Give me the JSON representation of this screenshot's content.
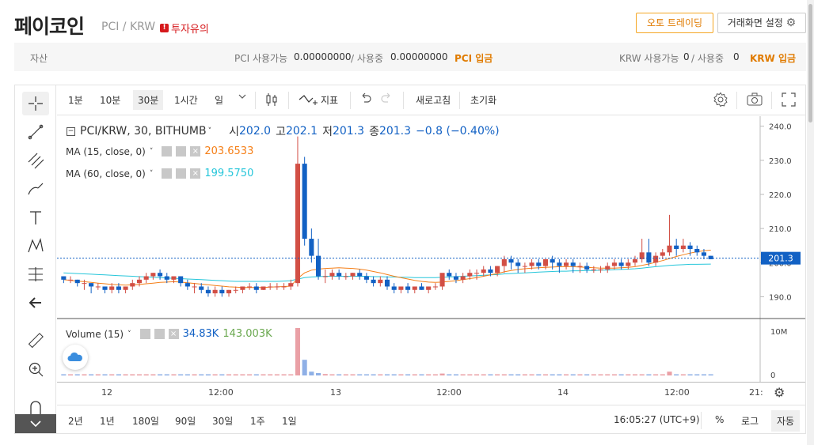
{
  "header": {
    "coin_name": "페이코인",
    "pair": "PCI / KRW",
    "warning": "투자유의",
    "auto_trading": "오토 트레이딩",
    "screen_settings": "거래화면 설정"
  },
  "assets": {
    "label": "자산",
    "pci_label": "PCI 사용가능",
    "pci_available": "0.00000000",
    "in_use_label": "/ 사용중",
    "pci_in_use": "0.00000000",
    "pci_deposit": "PCI 입금",
    "krw_label": "KRW 사용가능",
    "krw_available": "0",
    "krw_in_use_label": "/ 사용중",
    "krw_in_use": "0",
    "krw_deposit": "KRW 입금"
  },
  "toolbar": {
    "intervals": [
      "1분",
      "10분",
      "30분",
      "1시간",
      "일"
    ],
    "selected_interval": "30분",
    "indicators": "지표",
    "refresh": "새로고침",
    "reset": "초기화"
  },
  "legend": {
    "symbol": "PCI/KRW, 30, BITHUMB",
    "open_label": "시",
    "open": "202.0",
    "high_label": "고",
    "high": "202.1",
    "low_label": "저",
    "low": "201.3",
    "close_label": "종",
    "close": "201.3",
    "change": "−0.8 (−0.40%)",
    "ma15_label": "MA (15, close, 0)",
    "ma15_value": "203.6533",
    "ma60_label": "MA (60, close, 0)",
    "ma60_value": "199.5750",
    "volume_label": "Volume (15)",
    "volume_value": "34.83K",
    "volume_ma": "143.003K"
  },
  "price_axis": [
    "240.0",
    "230.0",
    "220.0",
    "210.0",
    "200.0",
    "190.0"
  ],
  "current_price": "201.3",
  "volume_axis": [
    "10M",
    "0"
  ],
  "time_axis": [
    "12",
    "12:00",
    "13",
    "12:00",
    "14",
    "12:00",
    "21:"
  ],
  "bottom": {
    "ranges": [
      "2년",
      "1년",
      "180일",
      "90일",
      "30일",
      "1주",
      "1일"
    ],
    "clock": "16:05:27 (UTC+9)",
    "percent": "%",
    "log": "로그",
    "auto": "자동"
  },
  "colors": {
    "up": "#d24f45",
    "down": "#1261c4",
    "ma15": "#f57f17",
    "ma60": "#26c6da",
    "accent": "#e07b00"
  },
  "chart_data": {
    "type": "candlestick",
    "title": "PCI/KRW, 30, BITHUMB",
    "ylim": [
      185,
      242
    ],
    "candles": [
      [
        196,
        196,
        195,
        194
      ],
      [
        195,
        196,
        195,
        194
      ],
      [
        195,
        195,
        194,
        193
      ],
      [
        194,
        195,
        194,
        192
      ],
      [
        194,
        194,
        193,
        191
      ],
      [
        193,
        194,
        193,
        192
      ],
      [
        193,
        193,
        192,
        191
      ],
      [
        192,
        194,
        193,
        191
      ],
      [
        193,
        194,
        192,
        191
      ],
      [
        192,
        193,
        193,
        191
      ],
      [
        193,
        195,
        194,
        192
      ],
      [
        194,
        196,
        195,
        193
      ],
      [
        195,
        197,
        196,
        194
      ],
      [
        196,
        197,
        197,
        195
      ],
      [
        197,
        198,
        196,
        195
      ],
      [
        196,
        197,
        195,
        194
      ],
      [
        195,
        196,
        196,
        194
      ],
      [
        196,
        196,
        194,
        193
      ],
      [
        194,
        195,
        193,
        192
      ],
      [
        193,
        194,
        193,
        191
      ],
      [
        193,
        194,
        192,
        191
      ],
      [
        192,
        193,
        191,
        190
      ],
      [
        191,
        193,
        192,
        190
      ],
      [
        192,
        193,
        191,
        190
      ],
      [
        191,
        192,
        192,
        190
      ],
      [
        192,
        193,
        192,
        191
      ],
      [
        192,
        193,
        193,
        191
      ],
      [
        193,
        194,
        193,
        192
      ],
      [
        193,
        194,
        192,
        191
      ],
      [
        192,
        193,
        193,
        192
      ],
      [
        193,
        194,
        193,
        192
      ],
      [
        193,
        194,
        193,
        192
      ],
      [
        193,
        194,
        193,
        192
      ],
      [
        193,
        195,
        194,
        192
      ],
      [
        194,
        237,
        229,
        193
      ],
      [
        229,
        231,
        207,
        205
      ],
      [
        207,
        210,
        202,
        200
      ],
      [
        202,
        207,
        196,
        195
      ],
      [
        196,
        198,
        196,
        194
      ],
      [
        196,
        198,
        197,
        195
      ],
      [
        197,
        198,
        196,
        195
      ],
      [
        196,
        197,
        196,
        195
      ],
      [
        196,
        197,
        197,
        195
      ],
      [
        197,
        198,
        196,
        195
      ],
      [
        196,
        197,
        195,
        194
      ],
      [
        195,
        196,
        194,
        193
      ],
      [
        194,
        196,
        195,
        193
      ],
      [
        195,
        196,
        193,
        192
      ],
      [
        193,
        194,
        192,
        191
      ],
      [
        192,
        193,
        193,
        191
      ],
      [
        193,
        194,
        192,
        191
      ],
      [
        192,
        193,
        193,
        191
      ],
      [
        193,
        194,
        192,
        192
      ],
      [
        192,
        193,
        193,
        191
      ],
      [
        193,
        194,
        193,
        192
      ],
      [
        193,
        196,
        197,
        192
      ],
      [
        197,
        198,
        196,
        195
      ],
      [
        196,
        197,
        195,
        194
      ],
      [
        195,
        197,
        196,
        194
      ],
      [
        196,
        198,
        197,
        195
      ],
      [
        197,
        198,
        197,
        195
      ],
      [
        197,
        199,
        198,
        196
      ],
      [
        198,
        199,
        197,
        196
      ],
      [
        197,
        199,
        199,
        196
      ],
      [
        199,
        202,
        201,
        197
      ],
      [
        201,
        202,
        200,
        198
      ],
      [
        200,
        201,
        199,
        197
      ],
      [
        199,
        200,
        199,
        197
      ],
      [
        199,
        201,
        200,
        198
      ],
      [
        200,
        201,
        199,
        198
      ],
      [
        199,
        201,
        201,
        198
      ],
      [
        201,
        202,
        200,
        198
      ],
      [
        200,
        201,
        199,
        197
      ],
      [
        199,
        201,
        200,
        198
      ],
      [
        200,
        201,
        199,
        197
      ],
      [
        199,
        200,
        199,
        197
      ],
      [
        199,
        200,
        198,
        197
      ],
      [
        198,
        199,
        198,
        197
      ],
      [
        198,
        199,
        198,
        197
      ],
      [
        198,
        200,
        199,
        197
      ],
      [
        199,
        201,
        200,
        198
      ],
      [
        200,
        201,
        199,
        198
      ],
      [
        199,
        201,
        200,
        198
      ],
      [
        200,
        202,
        201,
        199
      ],
      [
        201,
        207,
        203,
        200
      ],
      [
        203,
        207,
        200,
        199
      ],
      [
        200,
        203,
        202,
        199
      ],
      [
        202,
        204,
        203,
        201
      ],
      [
        203,
        214,
        205,
        202
      ],
      [
        205,
        207,
        204,
        202
      ],
      [
        204,
        207,
        205,
        203
      ],
      [
        205,
        206,
        204,
        202
      ],
      [
        204,
        205,
        203,
        202
      ],
      [
        203,
        204,
        202,
        201
      ],
      [
        202,
        202,
        201,
        201
      ]
    ],
    "ma15": [
      195,
      194.8,
      194.6,
      194.4,
      194.2,
      194,
      193.8,
      193.6,
      193.5,
      193.4,
      193.5,
      193.6,
      193.8,
      194,
      194.2,
      194.3,
      194.4,
      194.3,
      194.1,
      193.9,
      193.7,
      193.5,
      193.3,
      193.1,
      192.9,
      192.8,
      192.7,
      192.7,
      192.7,
      192.7,
      192.8,
      192.9,
      193,
      193.1,
      195.4,
      197,
      197.8,
      198.1,
      198.3,
      198.4,
      198.5,
      198.4,
      198.3,
      198.1,
      197.8,
      197.4,
      197,
      196.5,
      196,
      195.6,
      195.2,
      194.8,
      194.5,
      194.3,
      194.2,
      194.3,
      194.5,
      194.7,
      195,
      195.3,
      195.6,
      196,
      196.4,
      196.8,
      197.3,
      197.7,
      198,
      198.2,
      198.4,
      198.5,
      198.6,
      198.7,
      198.8,
      198.8,
      198.8,
      198.7,
      198.6,
      198.5,
      198.4,
      198.4,
      198.4,
      198.5,
      198.6,
      198.8,
      199.2,
      199.6,
      200.1,
      200.6,
      201.2,
      201.8,
      202.3,
      202.8,
      203.2,
      203.5,
      203.65
    ],
    "ma60": [
      197,
      196.9,
      196.8,
      196.7,
      196.6,
      196.5,
      196.4,
      196.3,
      196.2,
      196.1,
      196,
      195.9,
      195.8,
      195.7,
      195.6,
      195.5,
      195.4,
      195.3,
      195.2,
      195.1,
      195,
      194.9,
      194.8,
      194.7,
      194.6,
      194.5,
      194.5,
      194.5,
      194.5,
      194.5,
      194.5,
      194.5,
      194.6,
      194.7,
      195.2,
      195.6,
      195.8,
      195.9,
      196,
      196,
      196,
      196,
      196,
      196,
      196,
      195.9,
      195.9,
      195.8,
      195.8,
      195.7,
      195.7,
      195.6,
      195.6,
      195.6,
      195.6,
      195.7,
      195.8,
      195.9,
      196,
      196.1,
      196.2,
      196.3,
      196.4,
      196.5,
      196.7,
      196.8,
      196.9,
      197,
      197.1,
      197.2,
      197.3,
      197.4,
      197.5,
      197.5,
      197.6,
      197.6,
      197.7,
      197.7,
      197.8,
      197.8,
      197.9,
      198,
      198.1,
      198.2,
      198.4,
      198.6,
      198.8,
      199,
      199.2,
      199.3,
      199.4,
      199.5,
      199.5,
      199.55,
      199.575
    ],
    "volume": [
      0.1,
      0.1,
      0.1,
      0.1,
      0.1,
      0.1,
      0.1,
      0.1,
      0.1,
      0.1,
      0.1,
      0.1,
      0.1,
      0.1,
      0.1,
      0.1,
      0.1,
      0.1,
      0.1,
      0.1,
      0.1,
      0.1,
      0.1,
      0.1,
      0.1,
      0.1,
      0.1,
      0.1,
      0.1,
      0.1,
      0.1,
      0.1,
      0.1,
      0.2,
      10,
      3.3,
      0.8,
      0.5,
      0.3,
      0.2,
      0.2,
      0.2,
      0.1,
      0.1,
      0.1,
      0.1,
      0.1,
      0.1,
      0.1,
      0.1,
      0.1,
      0.1,
      0.1,
      0.1,
      0.1,
      0.4,
      0.2,
      0.1,
      0.1,
      0.1,
      0.1,
      0.1,
      0.1,
      0.1,
      0.2,
      0.2,
      0.1,
      0.1,
      0.1,
      0.1,
      0.1,
      0.1,
      0.1,
      0.1,
      0.1,
      0.1,
      0.1,
      0.1,
      0.1,
      0.1,
      0.1,
      0.1,
      0.1,
      0.1,
      0.2,
      0.2,
      0.1,
      0.1,
      0.8,
      0.2,
      0.2,
      0.1,
      0.1,
      0.1,
      0.1
    ]
  }
}
